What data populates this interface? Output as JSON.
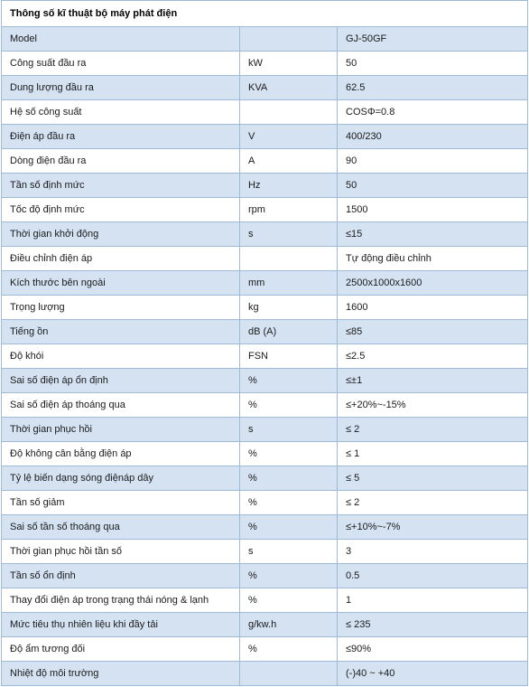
{
  "title": "Thông số kĩ thuật bộ máy phát điện",
  "rows": [
    [
      "Model",
      "",
      "GJ-50GF"
    ],
    [
      "Công suất đầu ra",
      "kW",
      "50"
    ],
    [
      "Dung lượng đầu ra",
      "KVA",
      "62.5"
    ],
    [
      "Hệ số công suất",
      "",
      "COSΦ=0.8"
    ],
    [
      "Điện áp đầu ra",
      "V",
      "400/230"
    ],
    [
      "Dòng điện đầu ra",
      "A",
      "90"
    ],
    [
      "Tần số định mức",
      "Hz",
      "50"
    ],
    [
      "Tốc độ định mức",
      "rpm",
      "1500"
    ],
    [
      "Thời gian khởi động",
      "s",
      "≤15"
    ],
    [
      "Điều chỉnh điện áp",
      "",
      "Tự động điều chỉnh"
    ],
    [
      "Kích thước bên ngoài",
      "mm",
      "2500x1000x1600"
    ],
    [
      "Trọng lượng",
      "kg",
      "1600"
    ],
    [
      "Tiếng ồn",
      "dB (A)",
      "≤85"
    ],
    [
      "Độ khói",
      "FSN",
      "≤2.5"
    ],
    [
      "Sai số điện áp ổn định",
      "%",
      "≤±1"
    ],
    [
      "Sai số điện áp thoáng qua",
      "%",
      "≤+20%~-15%"
    ],
    [
      "Thời gian phục hồi",
      "s",
      "≤ 2"
    ],
    [
      "Độ không cân bằng điện áp",
      "%",
      "≤ 1"
    ],
    [
      "Tỷ lệ biến dạng sóng điệnáp dây",
      "%",
      "≤ 5"
    ],
    [
      "Tần số giảm",
      "%",
      "≤ 2"
    ],
    [
      "Sai số tần số thoáng qua",
      "%",
      "≤+10%~-7%"
    ],
    [
      "Thời gian phục hồi tần số",
      "s",
      "3"
    ],
    [
      "Tần số ổn định",
      "%",
      "0.5"
    ],
    [
      "Thay đổi điện áp trong trạng thái nóng & lạnh",
      "%",
      "1"
    ],
    [
      "Mức tiêu thụ nhiên liệu khi đầy tải",
      "g/kw.h",
      "≤ 235"
    ],
    [
      "Độ ẩm tương đối",
      "%",
      "≤90%"
    ],
    [
      "Nhiệt độ môi trường",
      "",
      "(-)40 ~ +40"
    ]
  ],
  "colors": {
    "border": "#9fb9d9",
    "band": "#d4e2f2",
    "plain": "#ffffff"
  }
}
